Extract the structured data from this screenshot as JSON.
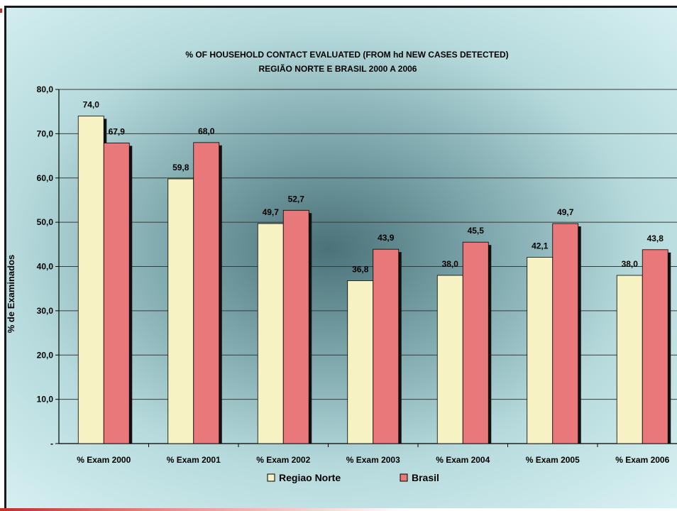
{
  "chart_data": {
    "type": "bar",
    "title": "% OF HOUSEHOLD CONTACT EVALUATED (FROM hd NEW CASES DETECTED)",
    "subtitle": "REGIÃO NORTE E BRASIL  2000 A 2006",
    "xlabel": "",
    "ylabel": "% de Examinados",
    "ylim": [
      0,
      80
    ],
    "yticks": [
      "-",
      "10,0",
      "20,0",
      "30,0",
      "40,0",
      "50,0",
      "60,0",
      "70,0",
      "80,0"
    ],
    "grid": true,
    "legend_position": "bottom",
    "categories": [
      "% Exam  2000",
      "% Exam  2001",
      "% Exam  2002",
      "% Exam  2003",
      "% Exam  2004",
      "% Exam  2005",
      "% Exam  2006"
    ],
    "series": [
      {
        "name": "Regiao Norte",
        "color": "#f7f2c4",
        "values": [
          74.0,
          59.8,
          49.7,
          36.8,
          38.0,
          42.1,
          38.0
        ],
        "labels": [
          "74,0",
          "59,8",
          "49,7",
          "36,8",
          "38,0",
          "42,1",
          "38,0"
        ]
      },
      {
        "name": "Brasil",
        "color": "#e8787a",
        "values": [
          67.9,
          68.0,
          52.7,
          43.9,
          45.5,
          49.7,
          43.8
        ],
        "labels": [
          "67,9",
          "68,0",
          "52,7",
          "43,9",
          "45,5",
          "49,7",
          "43,8"
        ]
      }
    ]
  }
}
